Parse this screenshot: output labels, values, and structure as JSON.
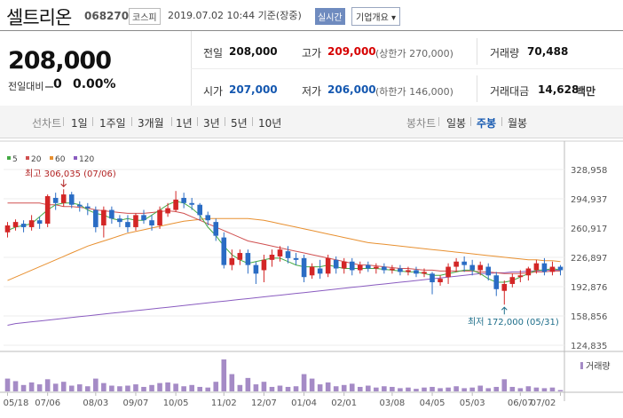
{
  "header": {
    "name": "셀트리온",
    "code": "068270",
    "market": "코스피",
    "datetime": "2019.07.02 10:44 기준(장중)",
    "realtime": "실시간",
    "company_info": "기업개요 ▾"
  },
  "summary": {
    "price": "208,000",
    "change_label": "전일대비",
    "change_value": "0",
    "change_pct": "0.00%",
    "prev_close_label": "전일",
    "prev_close": "208,000",
    "high_label": "고가",
    "high": "209,000",
    "upper_limit": "(상한가 270,000)",
    "volume_label": "거래량",
    "volume": "70,488",
    "open_label": "시가",
    "open": "207,000",
    "low_label": "저가",
    "low": "206,000",
    "lower_limit": "(하한가 146,000)",
    "amount_label": "거래대금",
    "amount": "14,628",
    "amount_unit": "백만"
  },
  "tabs": {
    "line_label": "선차트",
    "line": [
      "1일",
      "1주일",
      "3개월",
      "1년",
      "3년",
      "5년",
      "10년"
    ],
    "candle_label": "봉차트",
    "candle": [
      "일봉",
      "주봉",
      "월봉"
    ],
    "candle_active": "주봉"
  },
  "colors": {
    "up": "#d32626",
    "down": "#2a6cc4",
    "ma5": "#44aa44",
    "ma20": "#d05050",
    "ma60": "#e89030",
    "ma120": "#8a5cc0"
  },
  "chart_data": {
    "type": "candlestick",
    "legend": [
      {
        "name": "5",
        "color": "#44aa44"
      },
      {
        "name": "20",
        "color": "#d05050"
      },
      {
        "name": "60",
        "color": "#e89030"
      },
      {
        "name": "120",
        "color": "#8a5cc0"
      }
    ],
    "y_ticks": [
      "328,958",
      "294,937",
      "260,917",
      "226,897",
      "192,876",
      "158,856",
      "124,835"
    ],
    "ylim": [
      124835,
      328958
    ],
    "x_labels": [
      "05/18",
      "07/06",
      "08/03",
      "09/07",
      "10/05",
      "11/02",
      "12/07",
      "01/04",
      "02/01",
      "03/08",
      "04/05",
      "05/03",
      "06/07",
      "07/02"
    ],
    "high_annotation": "최고 306,035 (07/06)",
    "low_annotation": "최저 172,000 (05/31)",
    "volume_label": "거래량",
    "candles": [
      {
        "o": 256000,
        "c": 264000,
        "h": 268000,
        "l": 250000
      },
      {
        "o": 262000,
        "c": 268000,
        "h": 271000,
        "l": 258000
      },
      {
        "o": 266000,
        "c": 262000,
        "h": 270000,
        "l": 256000
      },
      {
        "o": 262000,
        "c": 270000,
        "h": 276000,
        "l": 258000
      },
      {
        "o": 270000,
        "c": 266000,
        "h": 274000,
        "l": 260000
      },
      {
        "o": 266000,
        "c": 298000,
        "h": 300000,
        "l": 262000
      },
      {
        "o": 296000,
        "c": 290000,
        "h": 302000,
        "l": 282000
      },
      {
        "o": 290000,
        "c": 300000,
        "h": 306035,
        "l": 286000
      },
      {
        "o": 300000,
        "c": 288000,
        "h": 303000,
        "l": 284000
      },
      {
        "o": 288000,
        "c": 286000,
        "h": 292000,
        "l": 280000
      },
      {
        "o": 286000,
        "c": 284000,
        "h": 290000,
        "l": 276000
      },
      {
        "o": 282000,
        "c": 262000,
        "h": 286000,
        "l": 256000
      },
      {
        "o": 264000,
        "c": 282000,
        "h": 286000,
        "l": 250000
      },
      {
        "o": 282000,
        "c": 272000,
        "h": 286000,
        "l": 266000
      },
      {
        "o": 272000,
        "c": 268000,
        "h": 276000,
        "l": 262000
      },
      {
        "o": 268000,
        "c": 262000,
        "h": 276000,
        "l": 256000
      },
      {
        "o": 262000,
        "c": 276000,
        "h": 278000,
        "l": 258000
      },
      {
        "o": 276000,
        "c": 270000,
        "h": 282000,
        "l": 266000
      },
      {
        "o": 270000,
        "c": 264000,
        "h": 276000,
        "l": 258000
      },
      {
        "o": 264000,
        "c": 282000,
        "h": 286000,
        "l": 260000
      },
      {
        "o": 278000,
        "c": 284000,
        "h": 290000,
        "l": 274000
      },
      {
        "o": 282000,
        "c": 294000,
        "h": 304000,
        "l": 280000
      },
      {
        "o": 296000,
        "c": 290000,
        "h": 302000,
        "l": 284000
      },
      {
        "o": 290000,
        "c": 288000,
        "h": 296000,
        "l": 282000
      },
      {
        "o": 288000,
        "c": 276000,
        "h": 290000,
        "l": 270000
      },
      {
        "o": 276000,
        "c": 270000,
        "h": 280000,
        "l": 264000
      },
      {
        "o": 268000,
        "c": 252000,
        "h": 272000,
        "l": 246000
      },
      {
        "o": 250000,
        "c": 218000,
        "h": 256000,
        "l": 214000
      },
      {
        "o": 218000,
        "c": 226000,
        "h": 236000,
        "l": 212000
      },
      {
        "o": 224000,
        "c": 232000,
        "h": 236000,
        "l": 218000
      },
      {
        "o": 232000,
        "c": 218000,
        "h": 236000,
        "l": 208000
      },
      {
        "o": 218000,
        "c": 208000,
        "h": 222000,
        "l": 196000
      },
      {
        "o": 212000,
        "c": 224000,
        "h": 230000,
        "l": 198000
      },
      {
        "o": 224000,
        "c": 230000,
        "h": 236000,
        "l": 216000
      },
      {
        "o": 228000,
        "c": 236000,
        "h": 240000,
        "l": 222000
      },
      {
        "o": 234000,
        "c": 226000,
        "h": 240000,
        "l": 220000
      },
      {
        "o": 226000,
        "c": 224000,
        "h": 232000,
        "l": 218000
      },
      {
        "o": 226000,
        "c": 204000,
        "h": 230000,
        "l": 198000
      },
      {
        "o": 206000,
        "c": 216000,
        "h": 220000,
        "l": 202000
      },
      {
        "o": 214000,
        "c": 208000,
        "h": 224000,
        "l": 202000
      },
      {
        "o": 208000,
        "c": 226000,
        "h": 230000,
        "l": 204000
      },
      {
        "o": 224000,
        "c": 214000,
        "h": 228000,
        "l": 208000
      },
      {
        "o": 214000,
        "c": 222000,
        "h": 226000,
        "l": 208000
      },
      {
        "o": 222000,
        "c": 212000,
        "h": 226000,
        "l": 206000
      },
      {
        "o": 212000,
        "c": 218000,
        "h": 222000,
        "l": 208000
      },
      {
        "o": 218000,
        "c": 214000,
        "h": 222000,
        "l": 210000
      },
      {
        "o": 214000,
        "c": 216000,
        "h": 220000,
        "l": 208000
      },
      {
        "o": 216000,
        "c": 212000,
        "h": 220000,
        "l": 208000
      },
      {
        "o": 212000,
        "c": 214000,
        "h": 218000,
        "l": 208000
      },
      {
        "o": 214000,
        "c": 210000,
        "h": 218000,
        "l": 206000
      },
      {
        "o": 210000,
        "c": 212000,
        "h": 216000,
        "l": 206000
      },
      {
        "o": 212000,
        "c": 208000,
        "h": 216000,
        "l": 204000
      },
      {
        "o": 208000,
        "c": 210000,
        "h": 214000,
        "l": 204000
      },
      {
        "o": 208000,
        "c": 198000,
        "h": 210000,
        "l": 184000
      },
      {
        "o": 198000,
        "c": 202000,
        "h": 206000,
        "l": 194000
      },
      {
        "o": 204000,
        "c": 216000,
        "h": 220000,
        "l": 196000
      },
      {
        "o": 216000,
        "c": 222000,
        "h": 226000,
        "l": 210000
      },
      {
        "o": 222000,
        "c": 218000,
        "h": 228000,
        "l": 210000
      },
      {
        "o": 218000,
        "c": 212000,
        "h": 224000,
        "l": 206000
      },
      {
        "o": 212000,
        "c": 218000,
        "h": 222000,
        "l": 206000
      },
      {
        "o": 216000,
        "c": 206000,
        "h": 220000,
        "l": 200000
      },
      {
        "o": 206000,
        "c": 190000,
        "h": 210000,
        "l": 182000
      },
      {
        "o": 188000,
        "c": 196000,
        "h": 200000,
        "l": 172000
      },
      {
        "o": 196000,
        "c": 204000,
        "h": 208000,
        "l": 192000
      },
      {
        "o": 204000,
        "c": 206000,
        "h": 212000,
        "l": 198000
      },
      {
        "o": 206000,
        "c": 214000,
        "h": 216000,
        "l": 200000
      },
      {
        "o": 212000,
        "c": 220000,
        "h": 224000,
        "l": 208000
      },
      {
        "o": 220000,
        "c": 210000,
        "h": 226000,
        "l": 206000
      },
      {
        "o": 210000,
        "c": 216000,
        "h": 222000,
        "l": 206000
      },
      {
        "o": 216000,
        "c": 212000,
        "h": 218000,
        "l": 206000
      }
    ],
    "ma5": [
      258000,
      262000,
      264000,
      266000,
      274000,
      282000,
      288000,
      290000,
      290000,
      288000,
      282000,
      278000,
      276000,
      272000,
      270000,
      272000,
      270000,
      270000,
      276000,
      282000,
      288000,
      292000,
      290000,
      284000,
      276000,
      262000,
      252000,
      240000,
      230000,
      224000,
      220000,
      222000,
      224000,
      226000,
      226000,
      222000,
      218000,
      216000,
      216000,
      216000,
      218000,
      216000,
      214000,
      214000,
      214000,
      214000,
      214000,
      213000,
      212000,
      211000,
      210000,
      210000,
      208000,
      206000,
      206000,
      208000,
      210000,
      212000,
      212000,
      208000,
      202000,
      198000,
      198000,
      200000,
      204000,
      208000,
      212000,
      212000,
      214000,
      212000
    ],
    "ma20": [
      290000,
      290000,
      290000,
      290000,
      290000,
      288000,
      288000,
      286000,
      286000,
      285000,
      284000,
      282000,
      281000,
      280000,
      279000,
      278000,
      278000,
      278000,
      279000,
      280000,
      281000,
      280000,
      278000,
      274000,
      270000,
      266000,
      262000,
      258000,
      254000,
      250000,
      246000,
      244000,
      242000,
      240000,
      238000,
      236000,
      234000,
      232000,
      230000,
      228000,
      226000,
      224000,
      222000,
      220000,
      218000,
      218000,
      217000,
      216000,
      215000,
      214000,
      214000,
      213000,
      212000,
      212000,
      211000,
      211000,
      211000,
      211000,
      211000,
      210000,
      210000,
      209000,
      208000,
      208000,
      208000,
      209000,
      210000,
      210000,
      211000,
      211000
    ],
    "ma60": [
      200000,
      204000,
      208000,
      212000,
      216000,
      220000,
      224000,
      228000,
      232000,
      236000,
      240000,
      243000,
      246000,
      249000,
      252000,
      255000,
      257000,
      259000,
      261000,
      263000,
      265000,
      267000,
      269000,
      270000,
      271000,
      272000,
      272000,
      272000,
      272000,
      272000,
      272000,
      271000,
      270000,
      268000,
      266000,
      264000,
      262000,
      260000,
      258000,
      256000,
      254000,
      252000,
      250000,
      248000,
      246000,
      244000,
      243000,
      242000,
      241000,
      240000,
      239000,
      238000,
      237000,
      236000,
      235000,
      234000,
      233000,
      232000,
      231000,
      230000,
      229000,
      228000,
      227000,
      226000,
      225000,
      224000,
      224000,
      223000,
      223000,
      222000
    ],
    "ma120": [
      148000,
      150000,
      151000,
      152000,
      153000,
      154000,
      155000,
      156000,
      157000,
      158000,
      159000,
      160000,
      161000,
      162000,
      163000,
      164000,
      165000,
      166000,
      167000,
      168000,
      169000,
      170000,
      171000,
      172000,
      173000,
      174000,
      175000,
      176000,
      177000,
      178000,
      179000,
      180000,
      181000,
      182000,
      183000,
      184000,
      185000,
      186000,
      187000,
      188000,
      189000,
      190000,
      191000,
      192000,
      193000,
      194000,
      195000,
      196000,
      197000,
      198000,
      199000,
      200000,
      201000,
      202000,
      203000,
      204000,
      205000,
      206000,
      207000,
      208000,
      208000,
      209000,
      209000,
      210000,
      210000,
      211000,
      211000,
      212000,
      212000,
      212000
    ],
    "volumes": [
      40,
      32,
      20,
      28,
      22,
      38,
      24,
      30,
      18,
      22,
      16,
      40,
      26,
      18,
      16,
      18,
      22,
      14,
      20,
      26,
      28,
      24,
      16,
      20,
      14,
      12,
      30,
      100,
      54,
      20,
      42,
      22,
      30,
      14,
      18,
      14,
      16,
      54,
      40,
      22,
      28,
      16,
      20,
      24,
      14,
      18,
      12,
      16,
      14,
      10,
      12,
      8,
      12,
      14,
      10,
      12,
      16,
      10,
      12,
      18,
      10,
      14,
      38,
      14,
      10,
      16,
      12,
      10,
      12,
      4
    ]
  }
}
